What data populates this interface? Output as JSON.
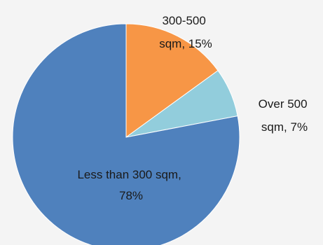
{
  "chart_data": {
    "type": "pie",
    "title": "",
    "start_angle_deg": 0,
    "direction": "clockwise",
    "slices": [
      {
        "category": "300-500 sqm",
        "value": 15,
        "label_lines": [
          "300-500",
          "sqm, 15%"
        ],
        "color": "#f79646"
      },
      {
        "category": "Over 500 sqm",
        "value": 7,
        "label_lines": [
          "Over 500",
          "sqm, 7%"
        ],
        "color": "#92cddc"
      },
      {
        "category": "Less than 300 sqm",
        "value": 78,
        "label_lines": [
          "Less than 300 sqm,",
          "78%"
        ],
        "color": "#4f81bd"
      }
    ],
    "legend": "none",
    "data_labels": "category, percentage"
  }
}
